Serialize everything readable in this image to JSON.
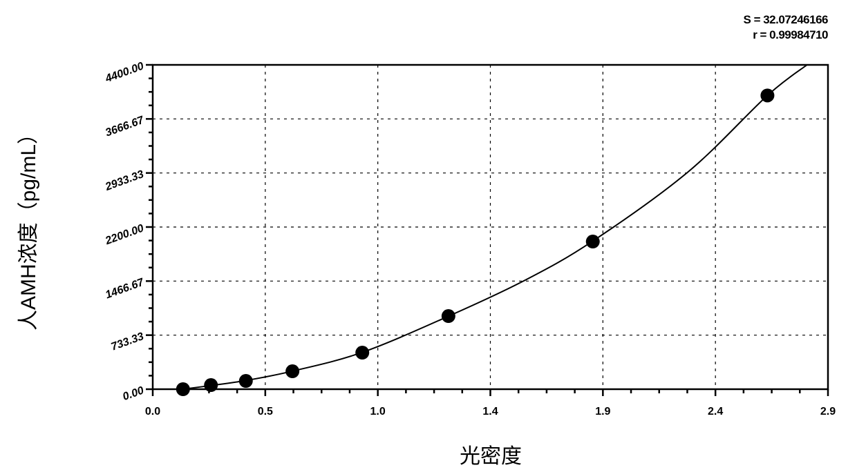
{
  "chart_data": {
    "type": "scatter",
    "xlabel": "光密度",
    "ylabel": "人AMH浓度（pg/mL）",
    "annotations": [
      "S = 32.07246166",
      "r = 0.99984710"
    ],
    "xlim": [
      0.0,
      2.9
    ],
    "ylim": [
      0.0,
      4400.0
    ],
    "x_tick_labels": [
      "0.0",
      "0.5",
      "1.0",
      "1.4",
      "1.9",
      "2.4",
      "2.9"
    ],
    "y_tick_labels": [
      "0.00",
      "733.33",
      "1466.67",
      "2200.00",
      "2933.33",
      "3666.67",
      "4400.00"
    ],
    "grid": true,
    "points": [
      {
        "x": 0.13,
        "y": 0
      },
      {
        "x": 0.25,
        "y": 56
      },
      {
        "x": 0.4,
        "y": 112
      },
      {
        "x": 0.6,
        "y": 243
      },
      {
        "x": 0.9,
        "y": 496
      },
      {
        "x": 1.27,
        "y": 992
      },
      {
        "x": 1.89,
        "y": 2003
      },
      {
        "x": 2.64,
        "y": 3985
      }
    ],
    "fit_curve": [
      {
        "x": 0.13,
        "y": 0
      },
      {
        "x": 0.25,
        "y": 50
      },
      {
        "x": 0.4,
        "y": 118
      },
      {
        "x": 0.6,
        "y": 245
      },
      {
        "x": 0.9,
        "y": 500
      },
      {
        "x": 1.27,
        "y": 990
      },
      {
        "x": 1.6,
        "y": 1480
      },
      {
        "x": 1.89,
        "y": 2010
      },
      {
        "x": 2.3,
        "y": 2950
      },
      {
        "x": 2.64,
        "y": 3985
      },
      {
        "x": 2.81,
        "y": 4400
      }
    ]
  }
}
